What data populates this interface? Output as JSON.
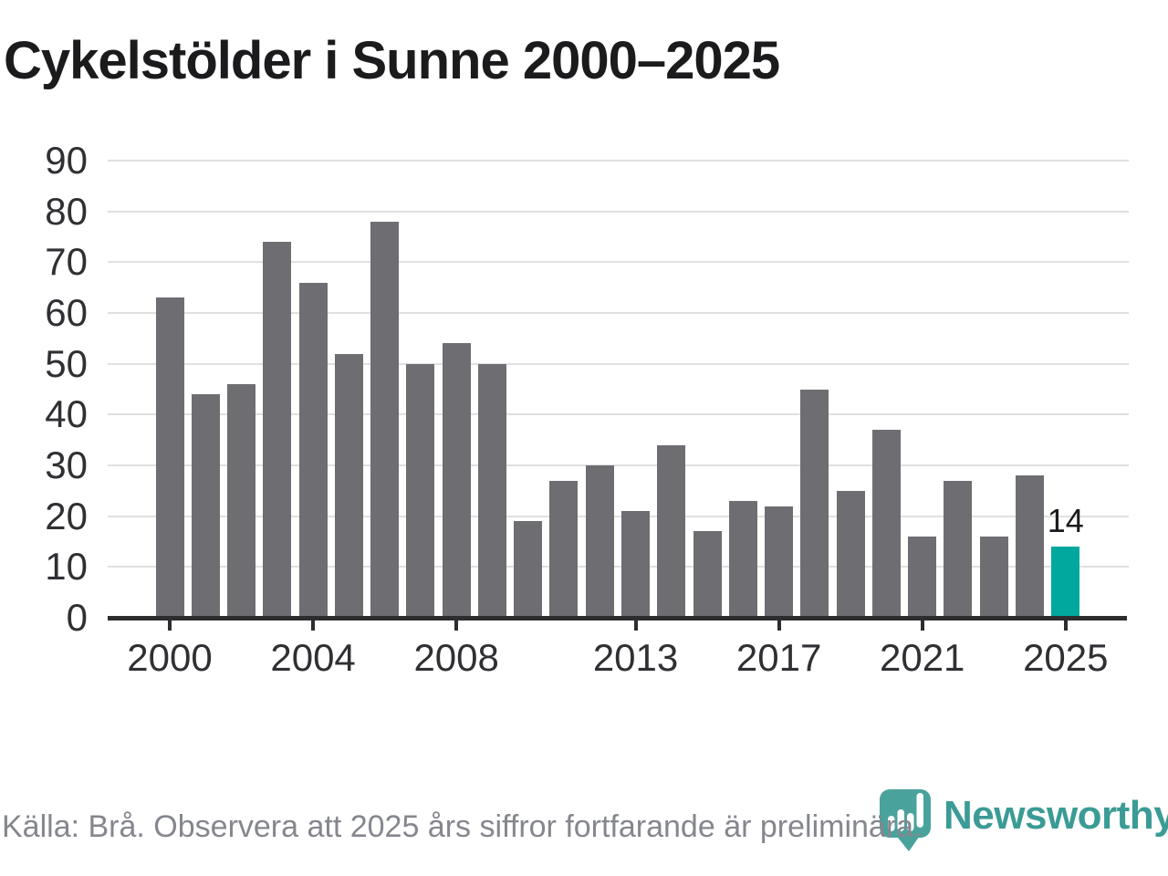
{
  "title": "Cykelstölder i Sunne 2000–2025",
  "chart_data": {
    "type": "bar",
    "title": "Cykelstölder i Sunne 2000–2025",
    "categories": [
      2000,
      2001,
      2002,
      2003,
      2004,
      2005,
      2006,
      2007,
      2008,
      2009,
      2010,
      2011,
      2012,
      2013,
      2014,
      2015,
      2016,
      2017,
      2018,
      2019,
      2020,
      2021,
      2022,
      2023,
      2024,
      2025
    ],
    "values": [
      63,
      44,
      46,
      74,
      66,
      52,
      78,
      50,
      54,
      50,
      19,
      27,
      30,
      21,
      34,
      17,
      23,
      22,
      45,
      25,
      37,
      16,
      27,
      16,
      28,
      14
    ],
    "highlight_category": 2025,
    "highlight_value_label": "14",
    "xlabel": "",
    "ylabel": "",
    "ylim": [
      0,
      90
    ],
    "yticks": [
      0,
      10,
      20,
      30,
      40,
      50,
      60,
      70,
      80,
      90
    ],
    "xticks": [
      2000,
      2004,
      2008,
      2013,
      2017,
      2021,
      2025
    ],
    "grid": "horizontal",
    "legend": "none"
  },
  "colors": {
    "bar": "#6e6d72",
    "highlight": "#00a89d",
    "gridline": "#e0e0e0",
    "axis": "#2d2d2f",
    "axis_text": "#303034",
    "title_text": "#1b1b1d",
    "footer_text": "#85878e",
    "logo_teal": "#3b9b95",
    "logo_pin_teal": "#4aa29c"
  },
  "footer": {
    "source_text": "Källa: Brå. Observera att 2025 års siffror fortfarande är preliminära."
  },
  "logo": {
    "text": "Newsworthy"
  }
}
